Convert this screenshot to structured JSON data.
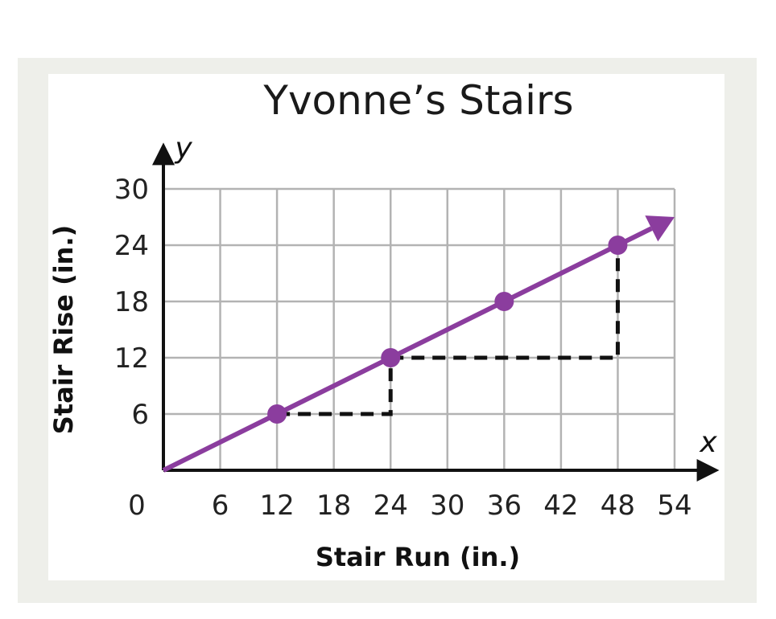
{
  "chart_data": {
    "type": "line",
    "title": "Yvonne’s Stairs",
    "xlabel": "Stair Run (in.)",
    "ylabel": "Stair Rise (in.)",
    "x_axis_variable": "x",
    "y_axis_variable": "y",
    "origin_label": "0",
    "xlim": [
      0,
      54
    ],
    "ylim": [
      0,
      30
    ],
    "x_ticks": [
      6,
      12,
      18,
      24,
      30,
      36,
      42,
      48,
      54
    ],
    "y_ticks": [
      6,
      12,
      18,
      24,
      30
    ],
    "grid": true,
    "series": [
      {
        "x": [
          12,
          24,
          36,
          48
        ],
        "y": [
          6,
          12,
          18,
          24
        ],
        "line_from": [
          0,
          0
        ],
        "line_to": [
          54,
          27
        ],
        "arrow_end": true,
        "color": "#8b3d9e"
      }
    ],
    "slope_triangles": [
      {
        "from": [
          12,
          6
        ],
        "corner": [
          24,
          6
        ],
        "to": [
          24,
          12
        ]
      },
      {
        "from": [
          24,
          12
        ],
        "corner": [
          48,
          12
        ],
        "to": [
          48,
          24
        ]
      }
    ],
    "colors": {
      "line": "#8b3d9e",
      "grid": "#b3b3b3",
      "axis": "#111111",
      "dashed": "#111111",
      "background": "#eeefea"
    }
  }
}
